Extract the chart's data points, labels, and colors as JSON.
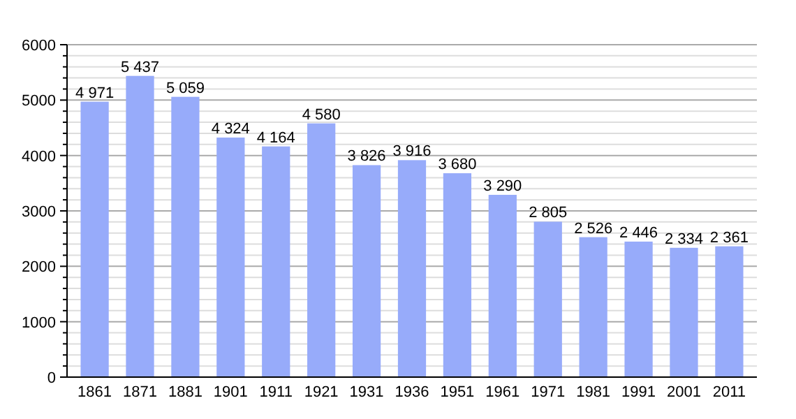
{
  "chart_data": {
    "type": "bar",
    "categories": [
      "1861",
      "1871",
      "1881",
      "1901",
      "1911",
      "1921",
      "1931",
      "1936",
      "1951",
      "1961",
      "1971",
      "1981",
      "1991",
      "2001",
      "2011"
    ],
    "values": [
      4971,
      5437,
      5059,
      4324,
      4164,
      4580,
      3826,
      3916,
      3680,
      3290,
      2805,
      2526,
      2446,
      2334,
      2361
    ],
    "value_labels": [
      "4 971",
      "5 437",
      "5 059",
      "4 324",
      "4 164",
      "4 580",
      "3 826",
      "3 916",
      "3 680",
      "3 290",
      "2 805",
      "2 526",
      "2 446",
      "2 334",
      "2 361"
    ],
    "color": "#97abfa",
    "ylim": [
      0,
      6000
    ],
    "yticks": [
      0,
      {
        "value": 200,
        "label": null
      },
      {
        "value": 400,
        "label": null
      },
      {
        "value": 600,
        "label": null
      },
      {
        "value": 800,
        "label": null
      },
      1000,
      {
        "value": 1200,
        "label": null
      },
      {
        "value": 1400,
        "label": null
      },
      {
        "value": 1600,
        "label": null
      },
      {
        "value": 1800,
        "label": null
      },
      2000,
      {
        "value": 2200,
        "label": null
      },
      {
        "value": 2400,
        "label": null
      },
      {
        "value": 2600,
        "label": null
      },
      {
        "value": 2800,
        "label": null
      },
      3000,
      {
        "value": 3200,
        "label": null
      },
      {
        "value": 3400,
        "label": null
      },
      {
        "value": 3600,
        "label": null
      },
      {
        "value": 3800,
        "label": null
      },
      4000,
      {
        "value": 4200,
        "label": null
      },
      {
        "value": 4400,
        "label": null
      },
      {
        "value": 4600,
        "label": null
      },
      {
        "value": 4800,
        "label": null
      },
      5000,
      {
        "value": 5200,
        "label": null
      },
      {
        "value": 5400,
        "label": null
      },
      {
        "value": 5600,
        "label": null
      },
      {
        "value": 5800,
        "label": null
      },
      6000
    ],
    "grid": true
  }
}
